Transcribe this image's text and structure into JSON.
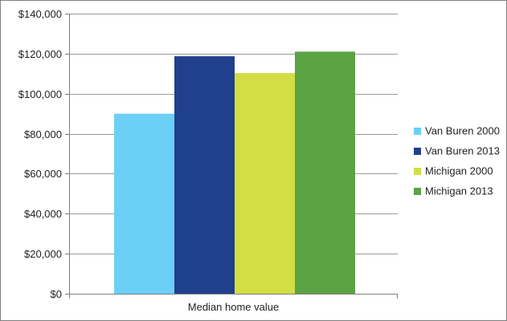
{
  "chart_data": {
    "type": "bar",
    "categories": [
      "Median home value"
    ],
    "series": [
      {
        "name": "Van Buren 2000",
        "values": [
          90000
        ],
        "color": "#6ccff6"
      },
      {
        "name": "Van Buren 2013",
        "values": [
          118700
        ],
        "color": "#203f8d"
      },
      {
        "name": "Michigan 2000",
        "values": [
          110300
        ],
        "color": "#d2de44"
      },
      {
        "name": "Michigan 2013",
        "values": [
          121000
        ],
        "color": "#5ba344"
      }
    ],
    "yticks": [
      "$0",
      "$20,000",
      "$40,000",
      "$60,000",
      "$80,000",
      "$100,000",
      "$120,000",
      "$140,000"
    ],
    "ylim": [
      0,
      140000
    ],
    "grid": true,
    "legend_position": "right",
    "colors": {
      "grid": "#9a9a9a",
      "axis": "#7f7f7f",
      "frame": "#7f7f7f"
    }
  }
}
